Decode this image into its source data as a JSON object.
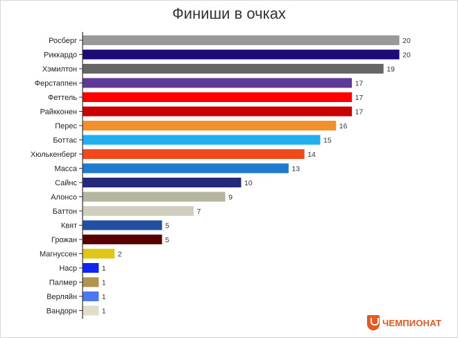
{
  "chart_data": {
    "type": "bar",
    "orientation": "horizontal",
    "title": "Финиши в очках",
    "categories": [
      "Росберг",
      "Риккардо",
      "Хэмилтон",
      "Ферстаппен",
      "Феттель",
      "Райкконен",
      "Перес",
      "Боттас",
      "Хюлькенберг",
      "Масса",
      "Сайнс",
      "Алонсо",
      "Баттон",
      "Квят",
      "Грожан",
      "Магнуссен",
      "Наср",
      "Палмер",
      "Верляйн",
      "Вандорн"
    ],
    "values": [
      20,
      20,
      19,
      17,
      17,
      17,
      16,
      15,
      14,
      13,
      10,
      9,
      7,
      5,
      5,
      2,
      1,
      1,
      1,
      1
    ],
    "colors": [
      "#999999",
      "#1f0b78",
      "#666666",
      "#5e3a98",
      "#ff0000",
      "#cc0000",
      "#f2902c",
      "#20b0f0",
      "#ee4a1c",
      "#1f7ad0",
      "#252a78",
      "#b5b5a0",
      "#d0cfbd",
      "#234ea3",
      "#5a0000",
      "#dfc617",
      "#1024f4",
      "#b09450",
      "#4c78f0",
      "#e0ddc8"
    ],
    "xlim": [
      0,
      20
    ],
    "grid": false,
    "data_labels": true
  },
  "brand": {
    "logo_text": "ЧЕМПИОНАТ",
    "logo_icon": "championat-logo-icon",
    "color": "#e9581f"
  }
}
